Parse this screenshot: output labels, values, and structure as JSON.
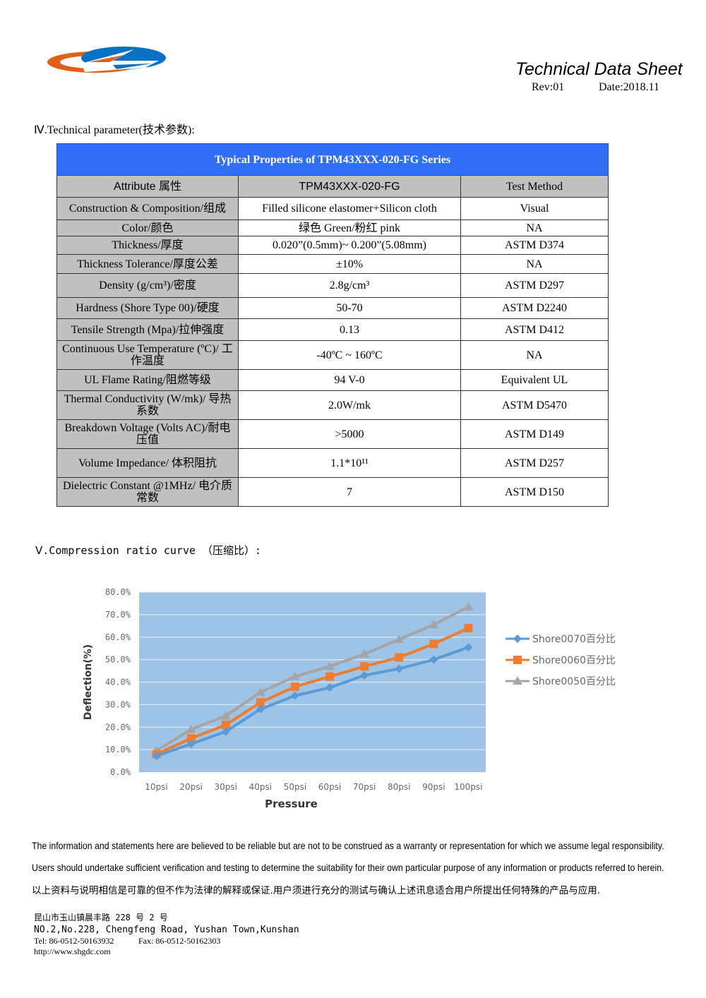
{
  "header": {
    "title": "Technical Data Sheet",
    "rev": "Rev:01",
    "date": "Date:2018.11"
  },
  "section4": "Ⅳ.Technical parameter(技术参数):",
  "table": {
    "title": "Typical Properties of    TPM43XXX-020-FG Series",
    "headers": [
      "Attribute 属性",
      "TPM43XXX-020-FG",
      "Test Method"
    ],
    "rows": [
      [
        "Construction & Composition/组成",
        "Filled silicone elastomer+Silicon cloth",
        "Visual"
      ],
      [
        "Color/颜色",
        "绿色 Green/粉红 pink",
        "NA"
      ],
      [
        "Thickness/厚度",
        "0.020”(0.5mm)~ 0.200”(5.08mm)",
        "ASTM D374"
      ],
      [
        "Thickness Tolerance/厚度公差",
        "±10%",
        "NA"
      ],
      [
        "Density (g/cm³)/密度",
        "2.8g/cm³",
        "ASTM D297"
      ],
      [
        "Hardness (Shore Type 00)/硬度",
        "50-70",
        "ASTM D2240"
      ],
      [
        "Tensile Strength (Mpa)/拉伸强度",
        "0.13",
        "ASTM D412"
      ],
      [
        "Continuous Use Temperature (ºC)/ 工作温度",
        "-40ºC ~ 160ºC",
        "NA"
      ],
      [
        "UL Flame Rating/阻燃等级",
        "94 V-0",
        "Equivalent UL"
      ],
      [
        "Thermal Conductivity (W/mk)/ 导热系数",
        "2.0W/mk",
        "ASTM D5470"
      ],
      [
        "Breakdown Voltage (Volts AC)/耐电压值",
        ">5000",
        "ASTM D149"
      ],
      [
        "Volume Impedance/ 体积阻抗",
        "1.1*10¹¹",
        "ASTM D257"
      ],
      [
        "Dielectric Constant @1MHz/ 电介质常数",
        "7",
        "ASTM D150"
      ]
    ]
  },
  "section5": "Ⅴ.Compression ratio curve （压缩比）:",
  "chart_data": {
    "type": "line",
    "xlabel": "Pressure",
    "ylabel": "Deflection(%)",
    "categories": [
      "10psi",
      "20psi",
      "30psi",
      "40psi",
      "50psi",
      "60psi",
      "70psi",
      "80psi",
      "90psi",
      "100psi"
    ],
    "yticks": [
      "0.0%",
      "10.0%",
      "20.0%",
      "30.0%",
      "40.0%",
      "50.0%",
      "60.0%",
      "70.0%",
      "80.0%"
    ],
    "ylim": [
      0,
      80
    ],
    "grid": true,
    "legend": "right",
    "series": [
      {
        "name": "Shore0070百分比",
        "color": "#5b9bd5",
        "marker": "diamond",
        "values": [
          7.2,
          12.5,
          18,
          28,
          34,
          37.6,
          43,
          46,
          50,
          55.5
        ]
      },
      {
        "name": "Shore0060百分比",
        "color": "#ed7d31",
        "marker": "square",
        "values": [
          8,
          15,
          21,
          31,
          38,
          42.5,
          47,
          51,
          57,
          64
        ]
      },
      {
        "name": "Shore0050百分比",
        "color": "#a5a5a5",
        "marker": "triangle",
        "values": [
          9.5,
          19,
          25,
          35.5,
          42.5,
          47,
          52.5,
          59,
          65.5,
          73.5
        ]
      }
    ],
    "plot_bg": "#9dc3e6"
  },
  "footer": {
    "lines": [
      "The information and statements here are believed to be reliable but are not to be construed as a warranty or representation for which we assume legal responsibility.",
      "Users should undertake sufficient verification and testing to determine the suitability for their own particular purpose of any information or products referred to herein.",
      "以上资料与说明相信是可靠的但不作为法律的解释或保证.用户须进行充分的测试与确认上述讯息适合用户所提出任何特殊的产品与应用."
    ],
    "address_cn": "昆山市玉山镇晨丰路 228 号 2 号",
    "address_en": "NO.2,No.228, Chengfeng Road, Yushan Town,Kunshan",
    "tel": "Tel: 86-0512-50163932",
    "fax": "Fax: 86-0512-50162303",
    "web": "http://www.shgdc.com"
  }
}
